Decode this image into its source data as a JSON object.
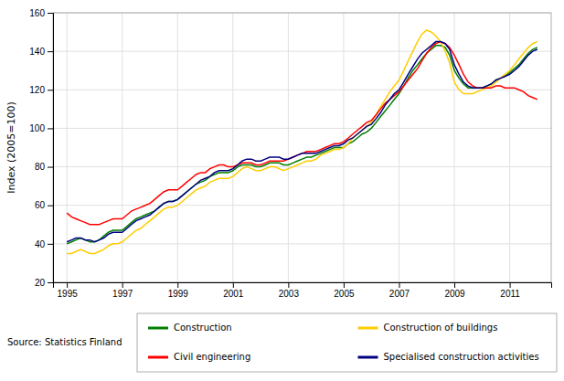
{
  "chart_data": {
    "type": "line",
    "ylabel": "Index (2005=100)",
    "annotations": [
      "Source: Statistics Finland"
    ],
    "xlim": [
      1994.5,
      2012.5
    ],
    "xticks": [
      1995,
      1997,
      1999,
      2001,
      2003,
      2005,
      2007,
      2009,
      2011
    ],
    "ylim": [
      20,
      160
    ],
    "yticks": [
      20,
      40,
      60,
      80,
      100,
      120,
      140,
      160
    ],
    "grid": true,
    "legend": "bottom",
    "x": [
      1995.0,
      1995.17,
      1995.33,
      1995.5,
      1995.67,
      1995.83,
      1996.0,
      1996.17,
      1996.33,
      1996.5,
      1996.67,
      1996.83,
      1997.0,
      1997.17,
      1997.33,
      1997.5,
      1997.67,
      1997.83,
      1998.0,
      1998.17,
      1998.33,
      1998.5,
      1998.67,
      1998.83,
      1999.0,
      1999.17,
      1999.33,
      1999.5,
      1999.67,
      1999.83,
      2000.0,
      2000.17,
      2000.33,
      2000.5,
      2000.67,
      2000.83,
      2001.0,
      2001.17,
      2001.33,
      2001.5,
      2001.67,
      2001.83,
      2002.0,
      2002.17,
      2002.33,
      2002.5,
      2002.67,
      2002.83,
      2003.0,
      2003.17,
      2003.33,
      2003.5,
      2003.67,
      2003.83,
      2004.0,
      2004.17,
      2004.33,
      2004.5,
      2004.67,
      2004.83,
      2005.0,
      2005.17,
      2005.33,
      2005.5,
      2005.67,
      2005.83,
      2006.0,
      2006.17,
      2006.33,
      2006.5,
      2006.67,
      2006.83,
      2007.0,
      2007.17,
      2007.33,
      2007.5,
      2007.67,
      2007.83,
      2008.0,
      2008.17,
      2008.33,
      2008.5,
      2008.67,
      2008.83,
      2009.0,
      2009.17,
      2009.33,
      2009.5,
      2009.67,
      2009.83,
      2010.0,
      2010.17,
      2010.33,
      2010.5,
      2010.67,
      2010.83,
      2011.0,
      2011.17,
      2011.33,
      2011.5,
      2011.67,
      2011.83,
      2012.0
    ],
    "series": [
      {
        "name": "Construction",
        "color": "#007F00",
        "values": [
          40,
          41,
          42,
          43,
          42,
          41,
          41,
          42,
          44,
          46,
          47,
          47,
          47,
          49,
          51,
          53,
          54,
          55,
          56,
          57,
          59,
          61,
          62,
          62,
          63,
          65,
          67,
          69,
          71,
          72,
          73,
          75,
          76,
          77,
          77,
          77,
          78,
          80,
          81,
          81,
          81,
          80,
          80,
          81,
          82,
          82,
          82,
          81,
          81,
          82,
          83,
          84,
          85,
          85,
          86,
          87,
          88,
          89,
          90,
          90,
          90,
          92,
          93,
          95,
          97,
          98,
          100,
          103,
          106,
          109,
          112,
          115,
          118,
          122,
          126,
          130,
          133,
          136,
          139,
          141,
          143,
          143,
          142,
          138,
          130,
          126,
          123,
          121,
          121,
          121,
          121,
          122,
          123,
          125,
          126,
          127,
          129,
          131,
          133,
          136,
          139,
          141,
          142
        ]
      },
      {
        "name": "Construction of buildings",
        "color": "#FFCC00",
        "values": [
          35,
          35,
          36,
          37,
          36,
          35,
          35,
          36,
          37,
          39,
          40,
          40,
          41,
          43,
          45,
          47,
          48,
          50,
          52,
          54,
          56,
          58,
          59,
          59,
          60,
          62,
          64,
          66,
          68,
          69,
          70,
          72,
          73,
          74,
          74,
          74,
          75,
          77,
          79,
          80,
          79,
          78,
          78,
          79,
          80,
          80,
          79,
          78,
          79,
          80,
          81,
          82,
          83,
          83,
          84,
          86,
          87,
          88,
          89,
          89,
          90,
          92,
          95,
          97,
          99,
          101,
          103,
          107,
          111,
          115,
          119,
          122,
          125,
          130,
          135,
          140,
          145,
          149,
          151,
          150,
          148,
          145,
          140,
          134,
          124,
          120,
          118,
          118,
          118,
          119,
          120,
          121,
          122,
          124,
          126,
          128,
          130,
          133,
          136,
          139,
          142,
          144,
          145
        ]
      },
      {
        "name": "Civil engineering",
        "color": "#FF0000",
        "values": [
          56,
          54,
          53,
          52,
          51,
          50,
          50,
          50,
          51,
          52,
          53,
          53,
          53,
          55,
          57,
          58,
          59,
          60,
          61,
          63,
          65,
          67,
          68,
          68,
          68,
          70,
          72,
          74,
          76,
          77,
          77,
          79,
          80,
          81,
          81,
          80,
          80,
          81,
          82,
          82,
          82,
          81,
          81,
          82,
          83,
          83,
          83,
          83,
          84,
          85,
          86,
          87,
          88,
          88,
          88,
          89,
          90,
          91,
          92,
          92,
          93,
          95,
          97,
          99,
          101,
          103,
          104,
          107,
          110,
          113,
          115,
          117,
          119,
          122,
          125,
          128,
          131,
          135,
          139,
          142,
          144,
          145,
          144,
          142,
          138,
          133,
          128,
          124,
          122,
          121,
          121,
          121,
          121,
          122,
          122,
          121,
          121,
          121,
          120,
          119,
          117,
          116,
          115
        ]
      },
      {
        "name": "Specialised construction activities",
        "color": "#000080",
        "values": [
          41,
          42,
          43,
          43,
          42,
          42,
          41,
          42,
          43,
          45,
          46,
          46,
          46,
          48,
          50,
          52,
          53,
          54,
          55,
          57,
          59,
          61,
          62,
          62,
          63,
          65,
          67,
          69,
          71,
          73,
          74,
          75,
          77,
          78,
          78,
          78,
          79,
          81,
          83,
          84,
          84,
          83,
          83,
          84,
          85,
          85,
          85,
          84,
          84,
          85,
          86,
          87,
          87,
          87,
          87,
          88,
          89,
          90,
          91,
          91,
          92,
          94,
          95,
          97,
          99,
          101,
          102,
          105,
          108,
          112,
          115,
          118,
          120,
          124,
          128,
          132,
          136,
          139,
          141,
          143,
          145,
          145,
          144,
          141,
          133,
          128,
          124,
          122,
          121,
          121,
          121,
          122,
          123,
          125,
          126,
          127,
          128,
          130,
          132,
          135,
          138,
          140,
          141
        ]
      }
    ]
  }
}
